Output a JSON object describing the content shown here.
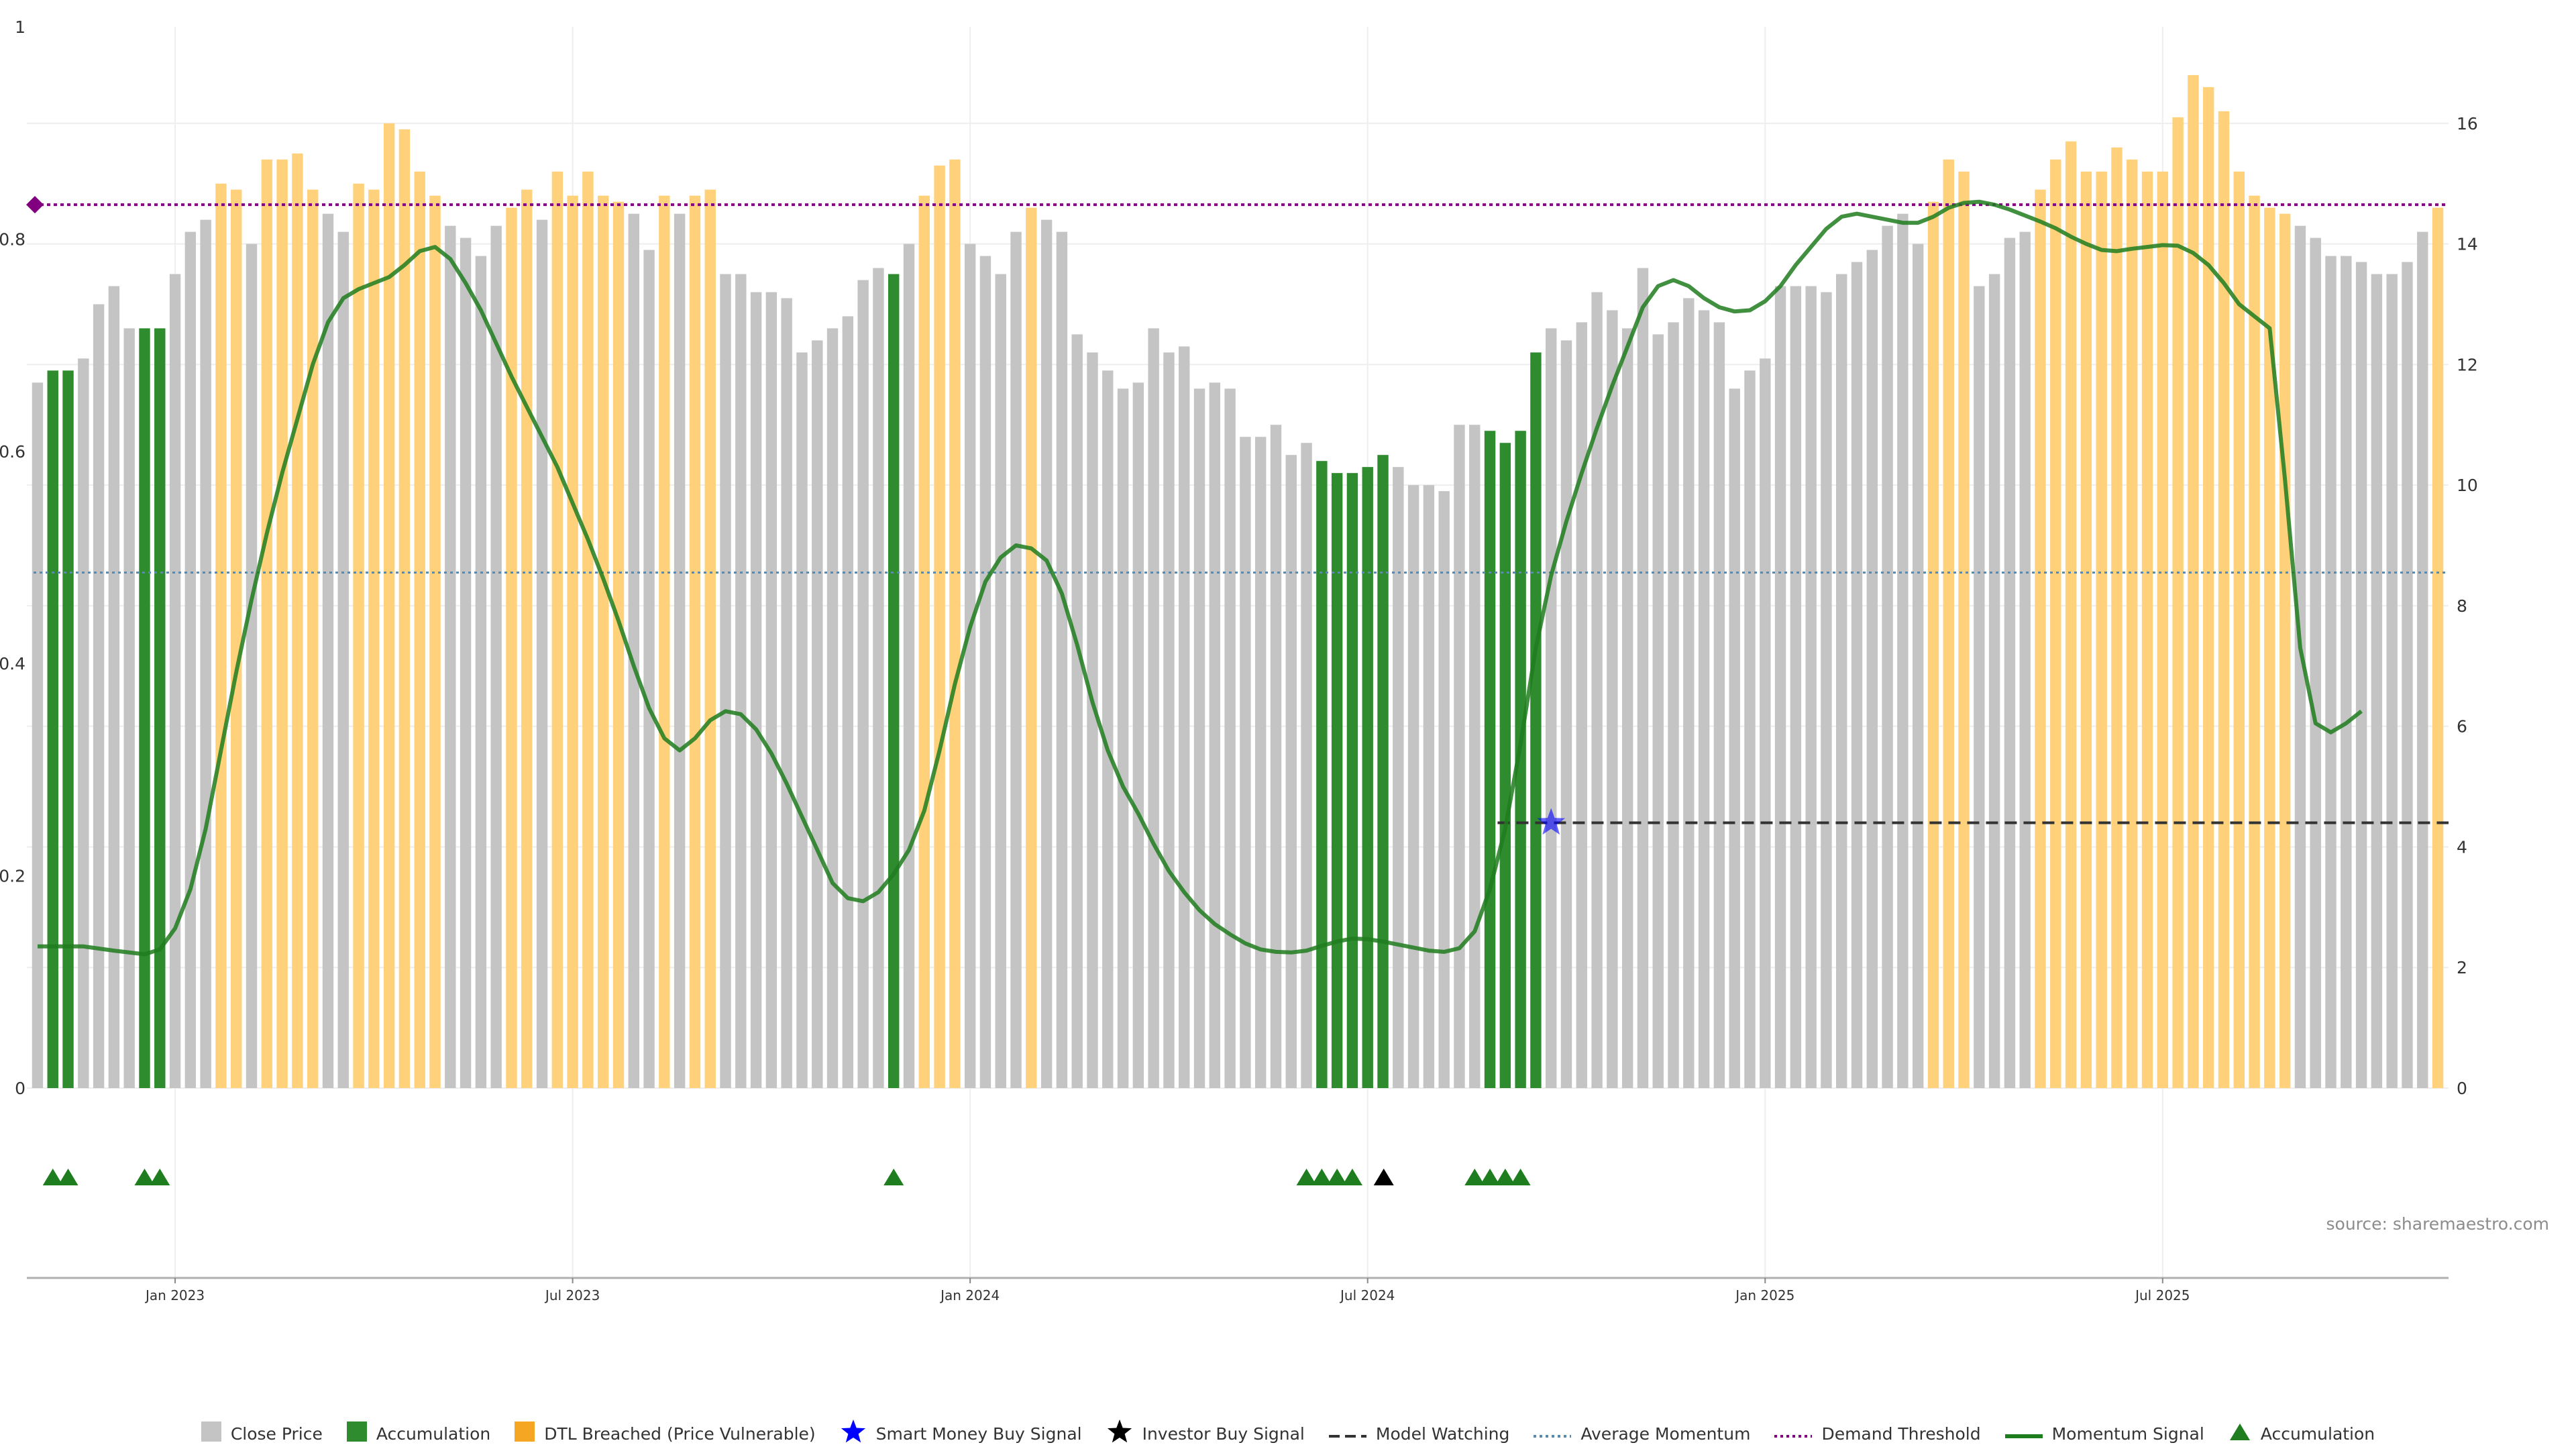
{
  "source": "source: sharemaestro.com",
  "chart_data": {
    "type": "bar",
    "title": "",
    "left_axis": {
      "ylim": [
        0,
        1
      ],
      "ticks": [
        "0",
        "0.2",
        "0.4",
        "0.6",
        "0.8",
        "1"
      ]
    },
    "right_axis": {
      "ylim": [
        0,
        17.6
      ],
      "ticks": [
        "0",
        "2",
        "4",
        "6",
        "8",
        "10",
        "12",
        "14",
        "16"
      ]
    },
    "x_ticks": [
      "Jan 2023",
      "Jul 2023",
      "Jan 2024",
      "Jul 2024",
      "Jan 2025",
      "Jul 2025"
    ],
    "x_tick_bar_index": [
      9,
      35,
      61,
      87,
      113,
      139
    ],
    "colors": {
      "close": "#c4c4c4",
      "accumulation": "#2e8b2e",
      "dtl": "#fed17a",
      "momentum": "#1e7d1e",
      "average": "#5a8aad",
      "demand": "#800080",
      "watching": "#333333",
      "smart": "#0000ff",
      "investor": "#000000"
    },
    "bars": [
      {
        "v": 11.7,
        "t": "c"
      },
      {
        "v": 11.9,
        "t": "a"
      },
      {
        "v": 11.9,
        "t": "a"
      },
      {
        "v": 12.1,
        "t": "c"
      },
      {
        "v": 13.0,
        "t": "c"
      },
      {
        "v": 13.3,
        "t": "c"
      },
      {
        "v": 12.6,
        "t": "c"
      },
      {
        "v": 12.6,
        "t": "a"
      },
      {
        "v": 12.6,
        "t": "a"
      },
      {
        "v": 13.5,
        "t": "c"
      },
      {
        "v": 14.2,
        "t": "c"
      },
      {
        "v": 14.4,
        "t": "c"
      },
      {
        "v": 15.0,
        "t": "d"
      },
      {
        "v": 14.9,
        "t": "d"
      },
      {
        "v": 14.0,
        "t": "c"
      },
      {
        "v": 15.4,
        "t": "d"
      },
      {
        "v": 15.4,
        "t": "d"
      },
      {
        "v": 15.5,
        "t": "d"
      },
      {
        "v": 14.9,
        "t": "d"
      },
      {
        "v": 14.5,
        "t": "c"
      },
      {
        "v": 14.2,
        "t": "c"
      },
      {
        "v": 15.0,
        "t": "d"
      },
      {
        "v": 14.9,
        "t": "d"
      },
      {
        "v": 16.0,
        "t": "d"
      },
      {
        "v": 15.9,
        "t": "d"
      },
      {
        "v": 15.2,
        "t": "d"
      },
      {
        "v": 14.8,
        "t": "d"
      },
      {
        "v": 14.3,
        "t": "c"
      },
      {
        "v": 14.1,
        "t": "c"
      },
      {
        "v": 13.8,
        "t": "c"
      },
      {
        "v": 14.3,
        "t": "c"
      },
      {
        "v": 14.6,
        "t": "d"
      },
      {
        "v": 14.9,
        "t": "d"
      },
      {
        "v": 14.4,
        "t": "c"
      },
      {
        "v": 15.2,
        "t": "d"
      },
      {
        "v": 14.8,
        "t": "d"
      },
      {
        "v": 15.2,
        "t": "d"
      },
      {
        "v": 14.8,
        "t": "d"
      },
      {
        "v": 14.7,
        "t": "d"
      },
      {
        "v": 14.5,
        "t": "c"
      },
      {
        "v": 13.9,
        "t": "c"
      },
      {
        "v": 14.8,
        "t": "d"
      },
      {
        "v": 14.5,
        "t": "c"
      },
      {
        "v": 14.8,
        "t": "d"
      },
      {
        "v": 14.9,
        "t": "d"
      },
      {
        "v": 13.5,
        "t": "c"
      },
      {
        "v": 13.5,
        "t": "c"
      },
      {
        "v": 13.2,
        "t": "c"
      },
      {
        "v": 13.2,
        "t": "c"
      },
      {
        "v": 13.1,
        "t": "c"
      },
      {
        "v": 12.2,
        "t": "c"
      },
      {
        "v": 12.4,
        "t": "c"
      },
      {
        "v": 12.6,
        "t": "c"
      },
      {
        "v": 12.8,
        "t": "c"
      },
      {
        "v": 13.4,
        "t": "c"
      },
      {
        "v": 13.6,
        "t": "c"
      },
      {
        "v": 13.5,
        "t": "a"
      },
      {
        "v": 14.0,
        "t": "c"
      },
      {
        "v": 14.8,
        "t": "d"
      },
      {
        "v": 15.3,
        "t": "d"
      },
      {
        "v": 15.4,
        "t": "d"
      },
      {
        "v": 14.0,
        "t": "c"
      },
      {
        "v": 13.8,
        "t": "c"
      },
      {
        "v": 13.5,
        "t": "c"
      },
      {
        "v": 14.2,
        "t": "c"
      },
      {
        "v": 14.6,
        "t": "d"
      },
      {
        "v": 14.4,
        "t": "c"
      },
      {
        "v": 14.2,
        "t": "c"
      },
      {
        "v": 12.5,
        "t": "c"
      },
      {
        "v": 12.2,
        "t": "c"
      },
      {
        "v": 11.9,
        "t": "c"
      },
      {
        "v": 11.6,
        "t": "c"
      },
      {
        "v": 11.7,
        "t": "c"
      },
      {
        "v": 12.6,
        "t": "c"
      },
      {
        "v": 12.2,
        "t": "c"
      },
      {
        "v": 12.3,
        "t": "c"
      },
      {
        "v": 11.6,
        "t": "c"
      },
      {
        "v": 11.7,
        "t": "c"
      },
      {
        "v": 11.6,
        "t": "c"
      },
      {
        "v": 10.8,
        "t": "c"
      },
      {
        "v": 10.8,
        "t": "c"
      },
      {
        "v": 11.0,
        "t": "c"
      },
      {
        "v": 10.5,
        "t": "c"
      },
      {
        "v": 10.7,
        "t": "c"
      },
      {
        "v": 10.4,
        "t": "a"
      },
      {
        "v": 10.2,
        "t": "a"
      },
      {
        "v": 10.2,
        "t": "a"
      },
      {
        "v": 10.3,
        "t": "a"
      },
      {
        "v": 10.5,
        "t": "a"
      },
      {
        "v": 10.3,
        "t": "c"
      },
      {
        "v": 10.0,
        "t": "c"
      },
      {
        "v": 10.0,
        "t": "c"
      },
      {
        "v": 9.9,
        "t": "c"
      },
      {
        "v": 11.0,
        "t": "c"
      },
      {
        "v": 11.0,
        "t": "c"
      },
      {
        "v": 10.9,
        "t": "a"
      },
      {
        "v": 10.7,
        "t": "a"
      },
      {
        "v": 10.9,
        "t": "a"
      },
      {
        "v": 12.2,
        "t": "a"
      },
      {
        "v": 12.6,
        "t": "c"
      },
      {
        "v": 12.4,
        "t": "c"
      },
      {
        "v": 12.7,
        "t": "c"
      },
      {
        "v": 13.2,
        "t": "c"
      },
      {
        "v": 12.9,
        "t": "c"
      },
      {
        "v": 12.6,
        "t": "c"
      },
      {
        "v": 13.6,
        "t": "c"
      },
      {
        "v": 12.5,
        "t": "c"
      },
      {
        "v": 12.7,
        "t": "c"
      },
      {
        "v": 13.1,
        "t": "c"
      },
      {
        "v": 12.9,
        "t": "c"
      },
      {
        "v": 12.7,
        "t": "c"
      },
      {
        "v": 11.6,
        "t": "c"
      },
      {
        "v": 11.9,
        "t": "c"
      },
      {
        "v": 12.1,
        "t": "c"
      },
      {
        "v": 13.3,
        "t": "c"
      },
      {
        "v": 13.3,
        "t": "c"
      },
      {
        "v": 13.3,
        "t": "c"
      },
      {
        "v": 13.2,
        "t": "c"
      },
      {
        "v": 13.5,
        "t": "c"
      },
      {
        "v": 13.7,
        "t": "c"
      },
      {
        "v": 13.9,
        "t": "c"
      },
      {
        "v": 14.3,
        "t": "c"
      },
      {
        "v": 14.5,
        "t": "c"
      },
      {
        "v": 14.0,
        "t": "c"
      },
      {
        "v": 14.7,
        "t": "d"
      },
      {
        "v": 15.4,
        "t": "d"
      },
      {
        "v": 15.2,
        "t": "d"
      },
      {
        "v": 13.3,
        "t": "c"
      },
      {
        "v": 13.5,
        "t": "c"
      },
      {
        "v": 14.1,
        "t": "c"
      },
      {
        "v": 14.2,
        "t": "c"
      },
      {
        "v": 14.9,
        "t": "d"
      },
      {
        "v": 15.4,
        "t": "d"
      },
      {
        "v": 15.7,
        "t": "d"
      },
      {
        "v": 15.2,
        "t": "d"
      },
      {
        "v": 15.2,
        "t": "d"
      },
      {
        "v": 15.6,
        "t": "d"
      },
      {
        "v": 15.4,
        "t": "d"
      },
      {
        "v": 15.2,
        "t": "d"
      },
      {
        "v": 15.2,
        "t": "d"
      },
      {
        "v": 16.1,
        "t": "d"
      },
      {
        "v": 16.8,
        "t": "d"
      },
      {
        "v": 16.6,
        "t": "d"
      },
      {
        "v": 16.2,
        "t": "d"
      },
      {
        "v": 15.2,
        "t": "d"
      },
      {
        "v": 14.8,
        "t": "d"
      },
      {
        "v": 14.6,
        "t": "d"
      },
      {
        "v": 14.5,
        "t": "d"
      },
      {
        "v": 14.3,
        "t": "c"
      },
      {
        "v": 14.1,
        "t": "c"
      },
      {
        "v": 13.8,
        "t": "c"
      },
      {
        "v": 13.8,
        "t": "c"
      },
      {
        "v": 13.7,
        "t": "c"
      },
      {
        "v": 13.5,
        "t": "c"
      },
      {
        "v": 13.5,
        "t": "c"
      },
      {
        "v": 13.7,
        "t": "c"
      },
      {
        "v": 14.2,
        "t": "c"
      },
      {
        "v": 14.6,
        "t": "d"
      }
    ],
    "momentum": [
      [
        0,
        2.35
      ],
      [
        2,
        2.35
      ],
      [
        3,
        2.35
      ],
      [
        5,
        2.28
      ],
      [
        7,
        2.22
      ],
      [
        8,
        2.3
      ],
      [
        9,
        2.65
      ],
      [
        10,
        3.3
      ],
      [
        11,
        4.3
      ],
      [
        12,
        5.6
      ],
      [
        13,
        6.9
      ],
      [
        14,
        8.1
      ],
      [
        15,
        9.2
      ],
      [
        16,
        10.2
      ],
      [
        17,
        11.1
      ],
      [
        18,
        12.0
      ],
      [
        19,
        12.7
      ],
      [
        20,
        13.1
      ],
      [
        21,
        13.25
      ],
      [
        22,
        13.35
      ],
      [
        23,
        13.45
      ],
      [
        24,
        13.65
      ],
      [
        25,
        13.88
      ],
      [
        26,
        13.95
      ],
      [
        27,
        13.75
      ],
      [
        28,
        13.35
      ],
      [
        29,
        12.9
      ],
      [
        30,
        12.35
      ],
      [
        31,
        11.8
      ],
      [
        32,
        11.3
      ],
      [
        33,
        10.8
      ],
      [
        34,
        10.3
      ],
      [
        35,
        9.7
      ],
      [
        36,
        9.1
      ],
      [
        37,
        8.45
      ],
      [
        38,
        7.75
      ],
      [
        39,
        7.0
      ],
      [
        40,
        6.3
      ],
      [
        41,
        5.8
      ],
      [
        42,
        5.6
      ],
      [
        43,
        5.8
      ],
      [
        44,
        6.1
      ],
      [
        45,
        6.25
      ],
      [
        46,
        6.2
      ],
      [
        47,
        5.95
      ],
      [
        48,
        5.55
      ],
      [
        49,
        5.05
      ],
      [
        50,
        4.5
      ],
      [
        51,
        3.95
      ],
      [
        52,
        3.4
      ],
      [
        53,
        3.15
      ],
      [
        54,
        3.1
      ],
      [
        55,
        3.25
      ],
      [
        56,
        3.55
      ],
      [
        57,
        3.95
      ],
      [
        58,
        4.6
      ],
      [
        59,
        5.6
      ],
      [
        60,
        6.7
      ],
      [
        61,
        7.65
      ],
      [
        62,
        8.4
      ],
      [
        63,
        8.8
      ],
      [
        64,
        9.0
      ],
      [
        65,
        8.95
      ],
      [
        66,
        8.75
      ],
      [
        67,
        8.2
      ],
      [
        68,
        7.35
      ],
      [
        69,
        6.4
      ],
      [
        70,
        5.6
      ],
      [
        71,
        5.0
      ],
      [
        72,
        4.55
      ],
      [
        73,
        4.05
      ],
      [
        74,
        3.6
      ],
      [
        75,
        3.25
      ],
      [
        76,
        2.95
      ],
      [
        77,
        2.72
      ],
      [
        78,
        2.55
      ],
      [
        79,
        2.4
      ],
      [
        80,
        2.3
      ],
      [
        81,
        2.26
      ],
      [
        82,
        2.25
      ],
      [
        83,
        2.28
      ],
      [
        84,
        2.36
      ],
      [
        85,
        2.43
      ],
      [
        86,
        2.48
      ],
      [
        87,
        2.47
      ],
      [
        88,
        2.43
      ],
      [
        89,
        2.38
      ],
      [
        90,
        2.33
      ],
      [
        91,
        2.28
      ],
      [
        92,
        2.26
      ],
      [
        93,
        2.32
      ],
      [
        94,
        2.6
      ],
      [
        95,
        3.3
      ],
      [
        96,
        4.3
      ],
      [
        97,
        5.7
      ],
      [
        98,
        7.3
      ],
      [
        99,
        8.5
      ],
      [
        100,
        9.4
      ],
      [
        101,
        10.2
      ],
      [
        102,
        10.95
      ],
      [
        103,
        11.65
      ],
      [
        104,
        12.3
      ],
      [
        105,
        12.95
      ],
      [
        106,
        13.3
      ],
      [
        107,
        13.4
      ],
      [
        108,
        13.3
      ],
      [
        109,
        13.1
      ],
      [
        110,
        12.95
      ],
      [
        111,
        12.88
      ],
      [
        112,
        12.9
      ],
      [
        113,
        13.05
      ],
      [
        114,
        13.3
      ],
      [
        115,
        13.65
      ],
      [
        116,
        13.95
      ],
      [
        117,
        14.25
      ],
      [
        118,
        14.45
      ],
      [
        119,
        14.5
      ],
      [
        120,
        14.45
      ],
      [
        121,
        14.4
      ],
      [
        122,
        14.35
      ],
      [
        123,
        14.35
      ],
      [
        124,
        14.45
      ],
      [
        125,
        14.6
      ],
      [
        126,
        14.68
      ],
      [
        127,
        14.7
      ],
      [
        128,
        14.65
      ],
      [
        129,
        14.57
      ],
      [
        130,
        14.47
      ],
      [
        131,
        14.37
      ],
      [
        132,
        14.26
      ],
      [
        133,
        14.12
      ],
      [
        134,
        14.0
      ],
      [
        135,
        13.9
      ],
      [
        136,
        13.88
      ],
      [
        137,
        13.92
      ],
      [
        138,
        13.95
      ],
      [
        139,
        13.98
      ],
      [
        140,
        13.97
      ],
      [
        141,
        13.85
      ],
      [
        142,
        13.65
      ],
      [
        143,
        13.35
      ],
      [
        144,
        13.0
      ],
      [
        145,
        12.8
      ],
      [
        146,
        12.6
      ],
      [
        147,
        10.1
      ],
      [
        148,
        7.3
      ],
      [
        149,
        6.05
      ],
      [
        150,
        5.9
      ],
      [
        151,
        6.05
      ],
      [
        152,
        6.25
      ]
    ],
    "average_momentum": 8.55,
    "demand_threshold": 14.65,
    "model_watching": {
      "level": 4.4,
      "from_bar": 95.5
    },
    "smart_money_buy_signal": {
      "bar": 99,
      "level": 4.4
    },
    "investor_buy_signal_bars": [
      87
    ],
    "accumulation_marker_bars": [
      1,
      2,
      7,
      8,
      56,
      83,
      84,
      85,
      86,
      94,
      95,
      96,
      97
    ]
  },
  "legend": [
    {
      "label": "Close Price",
      "kind": "square",
      "color": "#c4c4c4"
    },
    {
      "label": "Accumulation",
      "kind": "square",
      "color": "#2e8b2e"
    },
    {
      "label": "DTL Breached (Price Vulnerable)",
      "kind": "square",
      "color": "#f5a623"
    },
    {
      "label": "Smart Money Buy Signal",
      "kind": "star",
      "color": "#0000ff"
    },
    {
      "label": "Investor Buy Signal",
      "kind": "star",
      "color": "#000000"
    },
    {
      "label": "Model Watching",
      "kind": "dash",
      "color": "#333333"
    },
    {
      "label": "Average Momentum",
      "kind": "dot",
      "color": "#5a8aad"
    },
    {
      "label": "Demand Threshold",
      "kind": "dot",
      "color": "#800080"
    },
    {
      "label": "Momentum Signal",
      "kind": "line",
      "color": "#1e7d1e"
    },
    {
      "label": "Accumulation",
      "kind": "triangle",
      "color": "#1e7d1e"
    }
  ]
}
